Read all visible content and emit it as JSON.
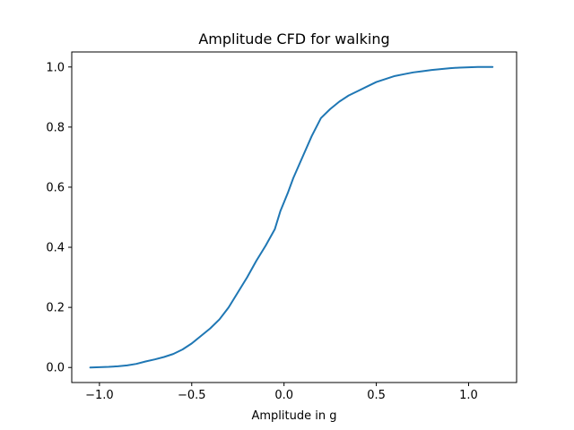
{
  "chart_data": {
    "type": "line",
    "title": "Amplitude CFD for walking",
    "xlabel": "Amplitude in g",
    "ylabel": "",
    "xlim": [
      -1.15,
      1.26
    ],
    "ylim": [
      -0.05,
      1.05
    ],
    "xticks": [
      -1.0,
      -0.5,
      0.0,
      0.5,
      1.0
    ],
    "xtick_labels": [
      "−1.0",
      "−0.5",
      "0.0",
      "0.5",
      "1.0"
    ],
    "yticks": [
      0.0,
      0.2,
      0.4,
      0.6,
      0.8,
      1.0
    ],
    "ytick_labels": [
      "0.0",
      "0.2",
      "0.4",
      "0.6",
      "0.8",
      "1.0"
    ],
    "grid": false,
    "series": [
      {
        "color": "#1f77b4",
        "x": [
          -1.05,
          -0.95,
          -0.9,
          -0.85,
          -0.8,
          -0.75,
          -0.7,
          -0.65,
          -0.6,
          -0.55,
          -0.5,
          -0.45,
          -0.4,
          -0.35,
          -0.3,
          -0.25,
          -0.2,
          -0.15,
          -0.1,
          -0.05,
          -0.02,
          0.0,
          0.02,
          0.05,
          0.1,
          0.15,
          0.2,
          0.25,
          0.3,
          0.35,
          0.4,
          0.45,
          0.5,
          0.55,
          0.6,
          0.65,
          0.7,
          0.75,
          0.8,
          0.85,
          0.9,
          0.95,
          1.0,
          1.05,
          1.1,
          1.13
        ],
        "y": [
          0.0,
          0.002,
          0.004,
          0.007,
          0.012,
          0.02,
          0.027,
          0.035,
          0.045,
          0.06,
          0.08,
          0.105,
          0.13,
          0.16,
          0.2,
          0.25,
          0.3,
          0.355,
          0.405,
          0.46,
          0.52,
          0.55,
          0.58,
          0.63,
          0.7,
          0.77,
          0.83,
          0.86,
          0.885,
          0.905,
          0.92,
          0.935,
          0.95,
          0.96,
          0.97,
          0.976,
          0.982,
          0.986,
          0.99,
          0.993,
          0.996,
          0.998,
          0.999,
          1.0,
          1.0,
          1.0
        ]
      }
    ]
  }
}
